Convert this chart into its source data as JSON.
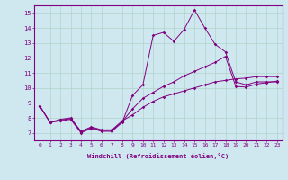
{
  "xlabel": "Windchill (Refroidissement éolien,°C)",
  "bg_color": "#cfe8f0",
  "line_color": "#800080",
  "xlim": [
    -0.5,
    23.5
  ],
  "ylim": [
    6.5,
    15.5
  ],
  "xticks": [
    0,
    1,
    2,
    3,
    4,
    5,
    6,
    7,
    8,
    9,
    10,
    11,
    12,
    13,
    14,
    15,
    16,
    17,
    18,
    19,
    20,
    21,
    22,
    23
  ],
  "yticks": [
    7,
    8,
    9,
    10,
    11,
    12,
    13,
    14,
    15
  ],
  "grid_color": "#b0d4c8",
  "series1_x": [
    0,
    1,
    2,
    3,
    4,
    5,
    6,
    7,
    8,
    9,
    10,
    11,
    12,
    13,
    14,
    15,
    16,
    17,
    18,
    19,
    20,
    21,
    22,
    23
  ],
  "series1_y": [
    8.8,
    7.7,
    7.8,
    7.9,
    7.0,
    7.3,
    7.1,
    7.1,
    7.7,
    9.5,
    10.2,
    13.5,
    13.7,
    13.1,
    13.9,
    15.2,
    14.0,
    12.9,
    12.4,
    10.4,
    10.2,
    10.4,
    10.4,
    10.4
  ],
  "series2_x": [
    0,
    1,
    2,
    3,
    4,
    5,
    6,
    7,
    8,
    9,
    10,
    11,
    12,
    13,
    14,
    15,
    16,
    17,
    18,
    19,
    20,
    21,
    22,
    23
  ],
  "series2_y": [
    8.8,
    7.7,
    7.85,
    7.95,
    7.05,
    7.35,
    7.15,
    7.15,
    7.75,
    8.6,
    9.3,
    9.7,
    10.1,
    10.4,
    10.8,
    11.1,
    11.4,
    11.7,
    12.1,
    10.1,
    10.05,
    10.25,
    10.35,
    10.45
  ],
  "series3_x": [
    0,
    1,
    2,
    3,
    4,
    5,
    6,
    7,
    8,
    9,
    10,
    11,
    12,
    13,
    14,
    15,
    16,
    17,
    18,
    19,
    20,
    21,
    22,
    23
  ],
  "series3_y": [
    8.8,
    7.7,
    7.9,
    8.0,
    7.1,
    7.4,
    7.2,
    7.2,
    7.8,
    8.2,
    8.7,
    9.1,
    9.4,
    9.6,
    9.8,
    10.0,
    10.2,
    10.4,
    10.5,
    10.6,
    10.65,
    10.75,
    10.75,
    10.75
  ],
  "xlabel_fontsize": 5.0,
  "tick_fontsize": 4.5,
  "marker_size": 1.8,
  "line_width": 0.7
}
